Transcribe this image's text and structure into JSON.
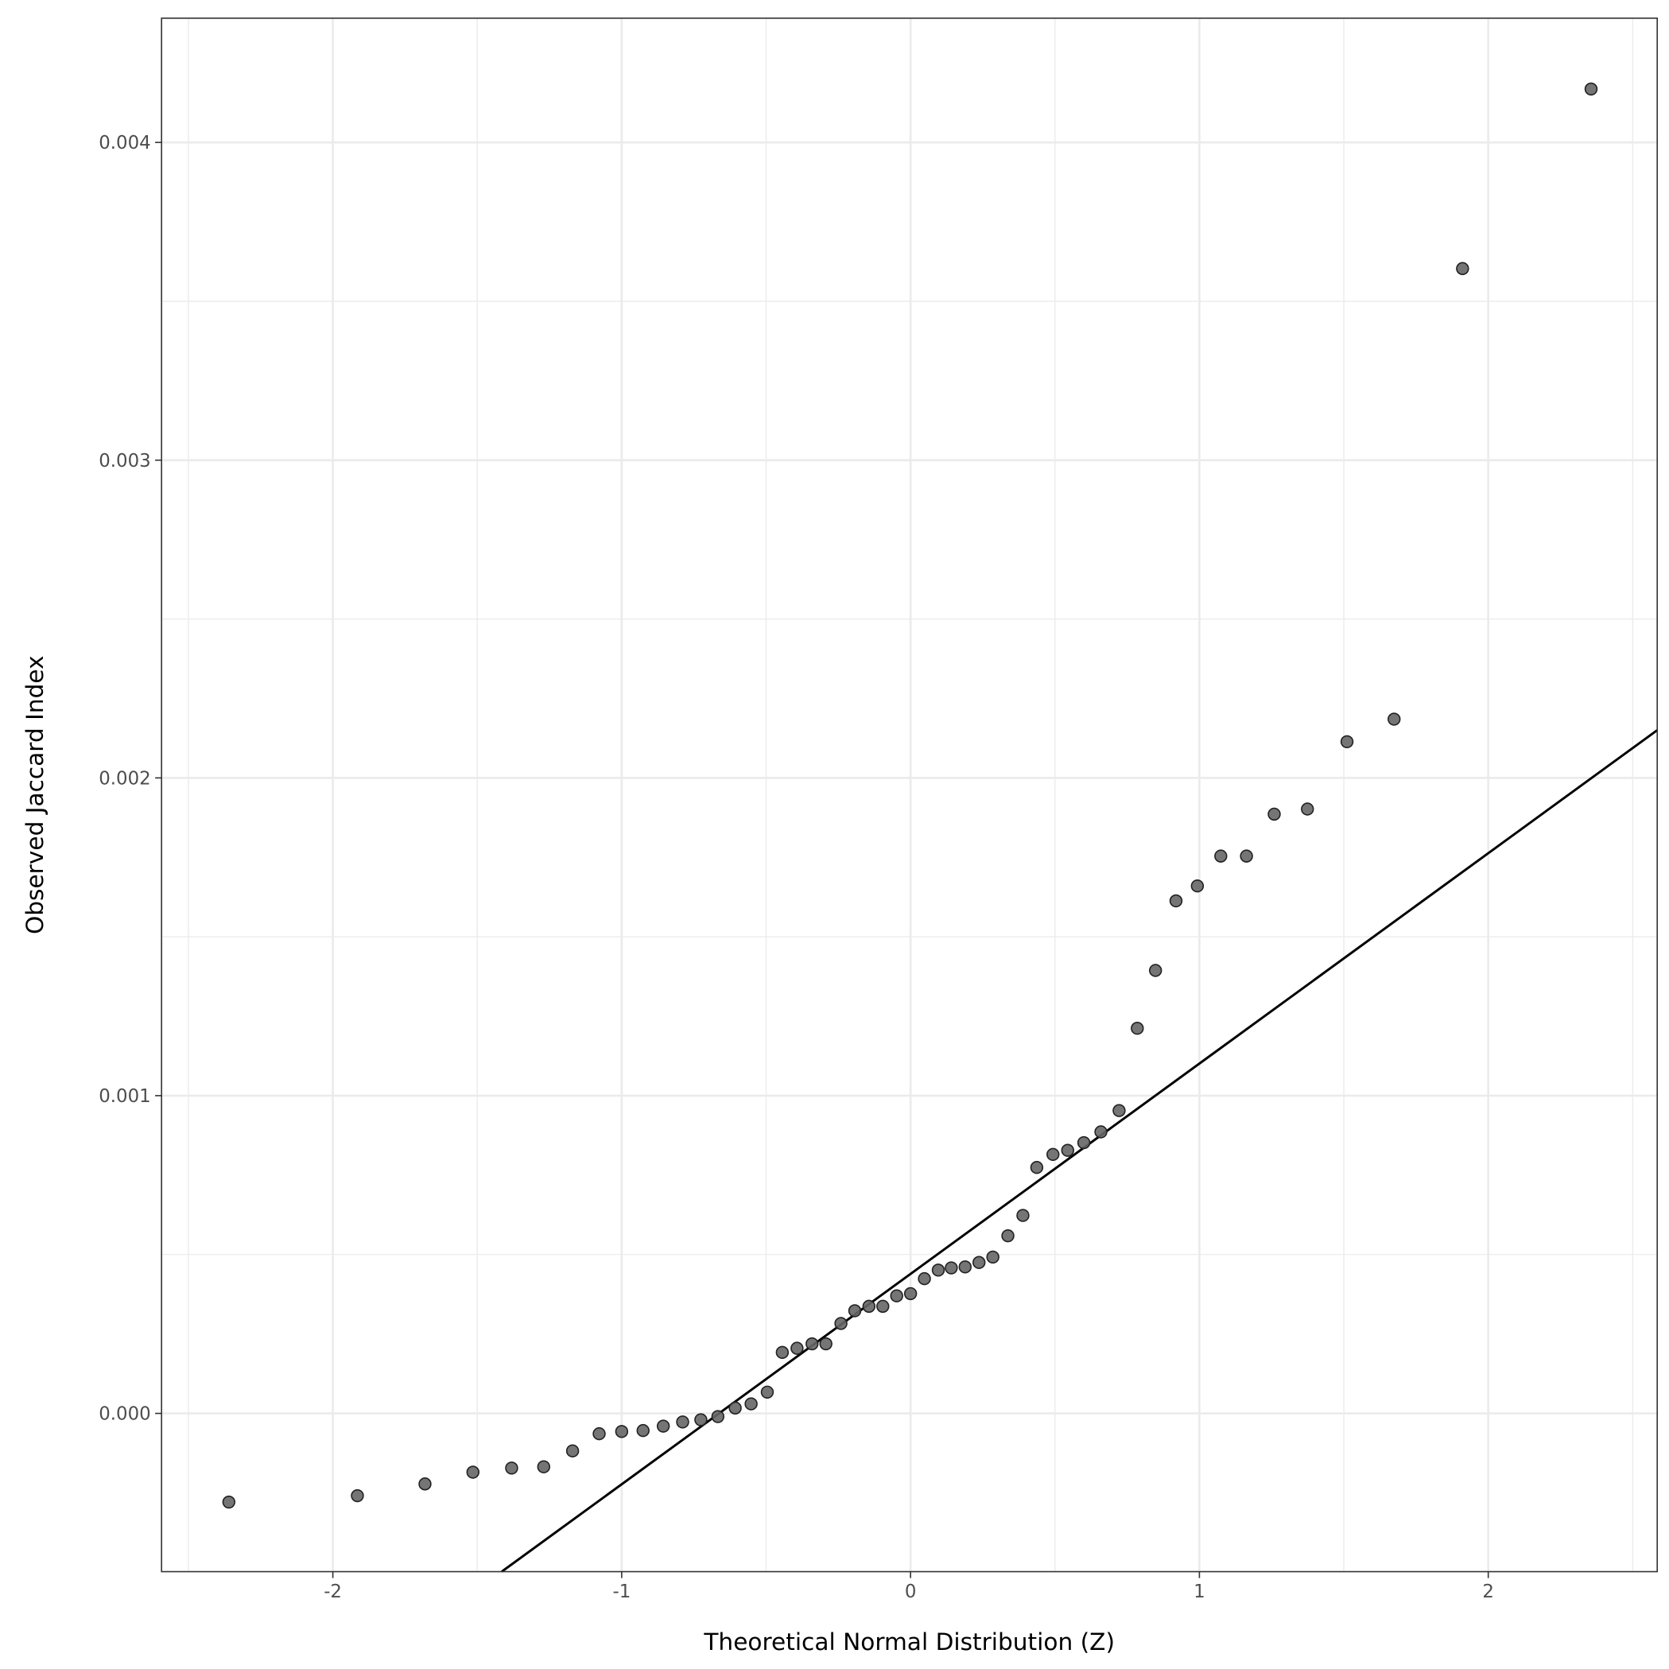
{
  "chart_data": {
    "type": "scatter",
    "title": "",
    "xlabel": "Theoretical Normal Distribution (Z)",
    "ylabel": "Observed Jaccard Index",
    "xlim": [
      -2.593,
      2.585
    ],
    "ylim": [
      -0.000498,
      0.004391
    ],
    "x_ticks": [
      -2,
      -1,
      0,
      1,
      2
    ],
    "x_tick_labels": [
      "-2",
      "-1",
      "0",
      "1",
      "2"
    ],
    "y_ticks": [
      0,
      0.001,
      0.002,
      0.003,
      0.004
    ],
    "y_tick_labels": [
      "0.000",
      "0.001",
      "0.002",
      "0.003",
      "0.004"
    ],
    "grid": true,
    "point_color": "#666666",
    "reference_line": {
      "slope": 0.000662,
      "intercept": 0.000439,
      "color": "#000000"
    },
    "points": [
      [
        -2.36,
        -0.000279
      ],
      [
        -1.915,
        -0.000259
      ],
      [
        -1.681,
        -0.000222
      ],
      [
        -1.515,
        -0.000185
      ],
      [
        -1.381,
        -0.000172
      ],
      [
        -1.27,
        -0.000168
      ],
      [
        -1.17,
        -0.000118
      ],
      [
        -1.078,
        -6.4e-05
      ],
      [
        -1.0,
        -5.7e-05
      ],
      [
        -0.926,
        -5.4e-05
      ],
      [
        -0.856,
        -4e-05
      ],
      [
        -0.789,
        -2.7e-05
      ],
      [
        -0.726,
        -2e-05
      ],
      [
        -0.667,
        -1e-05
      ],
      [
        -0.607,
        1.7e-05
      ],
      [
        -0.552,
        3e-05
      ],
      [
        -0.496,
        6.7e-05
      ],
      [
        -0.444,
        0.000192
      ],
      [
        -0.393,
        0.000205
      ],
      [
        -0.341,
        0.000219
      ],
      [
        -0.293,
        0.000219
      ],
      [
        -0.241,
        0.000283
      ],
      [
        -0.193,
        0.000323
      ],
      [
        -0.144,
        0.000337
      ],
      [
        -0.096,
        0.000337
      ],
      [
        -0.048,
        0.00037
      ],
      [
        0.0,
        0.000377
      ],
      [
        0.048,
        0.000424
      ],
      [
        0.096,
        0.000451
      ],
      [
        0.141,
        0.000458
      ],
      [
        0.189,
        0.000461
      ],
      [
        0.237,
        0.000475
      ],
      [
        0.285,
        0.000492
      ],
      [
        0.337,
        0.000559
      ],
      [
        0.389,
        0.000623
      ],
      [
        0.437,
        0.000774
      ],
      [
        0.493,
        0.000815
      ],
      [
        0.544,
        0.000828
      ],
      [
        0.6,
        0.000852
      ],
      [
        0.659,
        0.000886
      ],
      [
        0.722,
        0.000953
      ],
      [
        0.785,
        0.001212
      ],
      [
        0.848,
        0.001394
      ],
      [
        0.919,
        0.001613
      ],
      [
        0.993,
        0.00166
      ],
      [
        1.074,
        0.001754
      ],
      [
        1.163,
        0.001754
      ],
      [
        1.259,
        0.001886
      ],
      [
        1.374,
        0.001902
      ],
      [
        1.511,
        0.002114
      ],
      [
        1.674,
        0.002185
      ],
      [
        1.911,
        0.003603
      ],
      [
        2.356,
        0.004168
      ]
    ]
  }
}
